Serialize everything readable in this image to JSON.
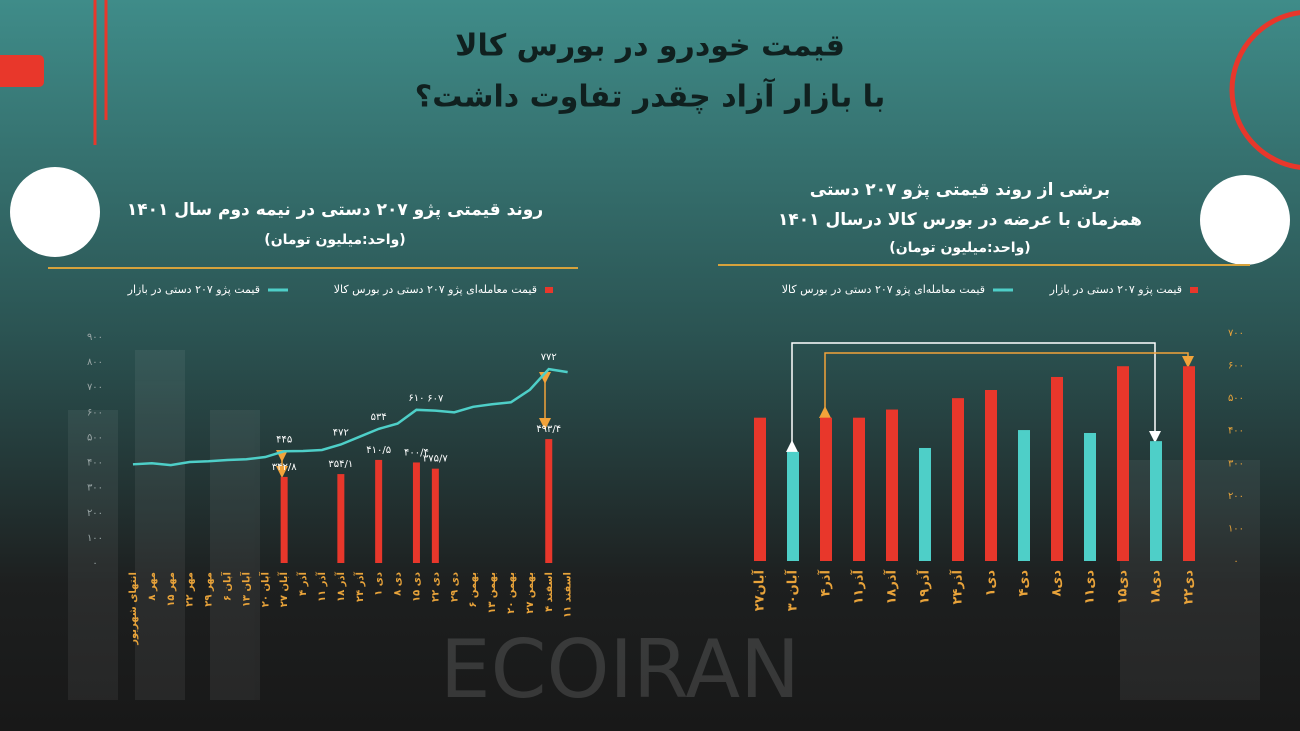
{
  "header": {
    "title": [
      "قیمت خودرو در بورس کالا",
      "با بازار آزاد چقدر تفاوت داشت؟"
    ]
  },
  "watermark": "ECOIRAN",
  "chart_data": [
    {
      "type": "combo",
      "title": [
        "روند قیمتی پژو ۲۰۷ دستی در نیمه دوم سال ۱۴۰۱"
      ],
      "subtitle": "(واحد:میلیون تومان)",
      "categories": [
        "انتهای شهریور",
        "۸ مهر",
        "۱۵ مهر",
        "۲۲ مهر",
        "۲۹ مهر",
        "۶ آبان",
        "۱۳ آبان",
        "۲۰ آبان",
        "۲۷ آبان",
        "۴ آذر",
        "۱۱ آذر",
        "۱۸ آذر",
        "۲۴ آذر",
        "۱ دی",
        "۸ دی",
        "۱۵ دی",
        "۲۲ دی",
        "۲۹ دی",
        "۶ بهمن",
        "۱۳ بهمن",
        "۲۰ بهمن",
        "۲۷ بهمن",
        "۴ اسفند",
        "۱۱ اسفند"
      ],
      "series": [
        {
          "name": "قیمت معامله‌ای پژو ۲۰۷ دستی در بورس کالا",
          "color": "#e8372b",
          "type": "bar",
          "values": [
            null,
            null,
            null,
            null,
            null,
            null,
            null,
            null,
            342.8,
            null,
            null,
            354.1,
            null,
            410.5,
            null,
            400.4,
            375.7,
            null,
            null,
            null,
            null,
            null,
            493.4,
            null
          ],
          "value_labels": [
            null,
            null,
            null,
            null,
            null,
            null,
            null,
            null,
            "۳۴۲/۸",
            null,
            null,
            "۳۵۴/۱",
            null,
            "۴۱۰/۵",
            null,
            "۴۰۰/۴",
            "۳۷۵/۷",
            null,
            null,
            null,
            null,
            null,
            "۴۹۳/۴",
            null
          ]
        },
        {
          "name": "قیمت پژو ۲۰۷ دستی در بازار",
          "color": "#4ecfc8",
          "type": "line",
          "values": [
            393,
            397,
            390,
            402,
            405,
            410,
            413,
            422,
            445,
            446,
            450,
            472,
            503,
            534,
            555,
            610,
            607,
            600,
            622,
            632,
            640,
            690,
            772,
            760
          ],
          "value_labels": [
            null,
            null,
            null,
            null,
            null,
            null,
            null,
            null,
            "۴۴۵",
            null,
            null,
            "۴۷۲",
            null,
            "۵۳۴",
            null,
            "۶۱۰",
            "۶۰۷",
            null,
            null,
            null,
            null,
            null,
            "۷۷۲",
            null
          ]
        }
      ],
      "ylim": [
        0,
        900
      ],
      "yticks": [
        {
          "value": 0,
          "label": "۰"
        },
        {
          "value": 100,
          "label": "۱۰۰"
        },
        {
          "value": 200,
          "label": "۲۰۰"
        },
        {
          "value": 300,
          "label": "۳۰۰"
        },
        {
          "value": 400,
          "label": "۴۰۰"
        },
        {
          "value": 500,
          "label": "۵۰۰"
        },
        {
          "value": 600,
          "label": "۶۰۰"
        },
        {
          "value": 700,
          "label": "۷۰۰"
        },
        {
          "value": 800,
          "label": "۸۰۰"
        },
        {
          "value": 900,
          "label": "۹۰۰"
        }
      ]
    },
    {
      "type": "bar",
      "title": [
        "برشی از روند قیمتی پژو ۲۰۷ دستی",
        "همزمان با عرضه در بورس کالا درسال ۱۴۰۱"
      ],
      "subtitle": "(واحد:میلیون تومان)",
      "categories": [
        "۲۷آبان",
        "۳۰آبان",
        "۴آذر",
        "۱۱آذر",
        "۱۸آذر",
        "۱۹آذر",
        "۲۴آذر",
        "۱دی",
        "۴دی",
        "۸دی",
        "۱۱دی",
        "۱۵دی",
        "۱۸دی",
        "۲۲دی"
      ],
      "series": [
        {
          "name": "قیمت پژو ۲۰۷ دستی در بازار",
          "color": "#e8372b",
          "values": [
            440,
            null,
            440,
            440,
            465,
            null,
            500,
            525,
            null,
            565,
            null,
            598,
            null,
            598
          ]
        },
        {
          "name": "قیمت معامله‌ای پژو ۲۰۷ دستی در بورس کالا",
          "color": "#4ecfc8",
          "values": [
            null,
            335,
            null,
            null,
            null,
            347,
            null,
            null,
            402,
            null,
            393,
            null,
            368,
            null
          ]
        }
      ],
      "ylim": [
        0,
        700
      ],
      "yticks": [
        {
          "value": 0,
          "label": "۰"
        },
        {
          "value": 100,
          "label": "۱۰۰"
        },
        {
          "value": 200,
          "label": "۲۰۰"
        },
        {
          "value": 300,
          "label": "۳۰۰"
        },
        {
          "value": 400,
          "label": "۴۰۰"
        },
        {
          "value": 500,
          "label": "۵۰۰"
        },
        {
          "value": 600,
          "label": "۶۰۰"
        },
        {
          "value": 700,
          "label": "۷۰۰"
        }
      ]
    }
  ]
}
